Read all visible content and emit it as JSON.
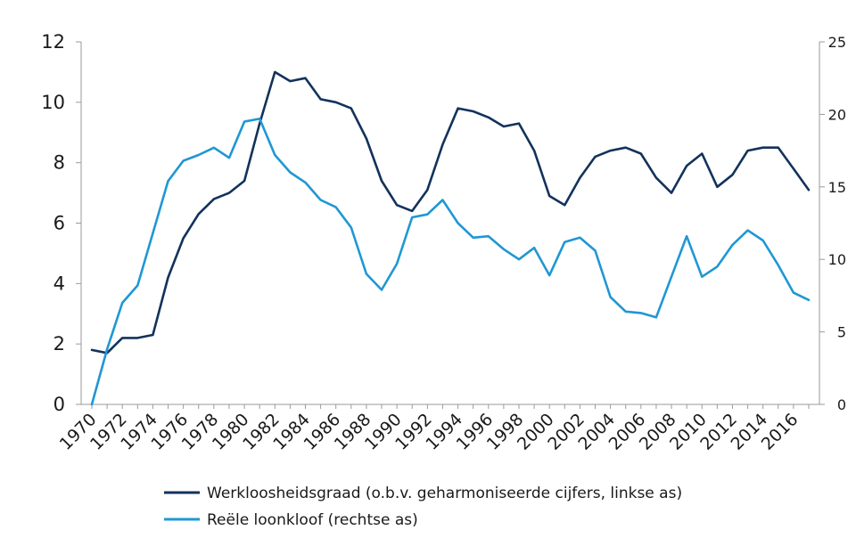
{
  "chart_data": {
    "type": "line",
    "title": "",
    "xlabel": "",
    "ylabel": "",
    "x": [
      1970,
      1971,
      1972,
      1973,
      1974,
      1975,
      1976,
      1977,
      1978,
      1979,
      1980,
      1981,
      1982,
      1983,
      1984,
      1985,
      1986,
      1987,
      1988,
      1989,
      1990,
      1991,
      1992,
      1993,
      1994,
      1995,
      1996,
      1997,
      1998,
      1999,
      2000,
      2001,
      2002,
      2003,
      2004,
      2005,
      2006,
      2007,
      2008,
      2009,
      2010,
      2011,
      2012,
      2013,
      2014,
      2015,
      2016,
      2017
    ],
    "x_tick_labels": [
      "1970",
      "1972",
      "1974",
      "1976",
      "1978",
      "1980",
      "1982",
      "1984",
      "1986",
      "1988",
      "1990",
      "1992",
      "1994",
      "1996",
      "1998",
      "2000",
      "2002",
      "2004",
      "2006",
      "2008",
      "2010",
      "2012",
      "2014",
      "2016"
    ],
    "y_left": {
      "ylim": [
        0,
        12
      ],
      "ticks": [
        "0",
        "2",
        "4",
        "6",
        "8",
        "10",
        "12"
      ]
    },
    "y_right": {
      "ylim": [
        0,
        25
      ],
      "ticks": [
        "0",
        "5",
        "10",
        "15",
        "20",
        "25"
      ]
    },
    "grid": false,
    "legend_position": "bottom",
    "series": [
      {
        "name": "Werkloosheidsgraad (o.b.v. geharmoniseerde cijfers, linkse as)",
        "axis": "left",
        "color": "#13325b",
        "values": [
          1.8,
          1.7,
          2.2,
          2.2,
          2.3,
          4.2,
          5.5,
          6.3,
          6.8,
          7.0,
          7.4,
          9.3,
          11.0,
          10.7,
          10.8,
          10.1,
          10.0,
          9.8,
          8.8,
          7.4,
          6.6,
          6.4,
          7.1,
          8.6,
          9.8,
          9.7,
          9.5,
          9.2,
          9.3,
          8.4,
          6.9,
          6.6,
          7.5,
          8.2,
          8.4,
          8.5,
          8.3,
          7.5,
          7.0,
          7.9,
          8.3,
          7.2,
          7.6,
          8.4,
          8.5,
          8.5,
          7.8,
          7.1
        ]
      },
      {
        "name": "Reële loonkloof (rechtse as)",
        "axis": "right",
        "color": "#1f97d4",
        "values": [
          0.0,
          3.8,
          7.0,
          8.2,
          11.8,
          15.4,
          16.8,
          17.2,
          17.7,
          17.0,
          19.5,
          19.7,
          17.2,
          16.0,
          15.3,
          14.1,
          13.6,
          12.2,
          9.0,
          7.9,
          9.7,
          12.9,
          13.1,
          14.1,
          12.5,
          11.5,
          11.6,
          10.7,
          10.0,
          10.8,
          8.9,
          11.2,
          11.5,
          10.6,
          7.4,
          6.4,
          6.3,
          6.0,
          8.8,
          11.6,
          8.8,
          9.5,
          11.0,
          12.0,
          11.3,
          9.6,
          7.7,
          7.2
        ]
      }
    ]
  }
}
